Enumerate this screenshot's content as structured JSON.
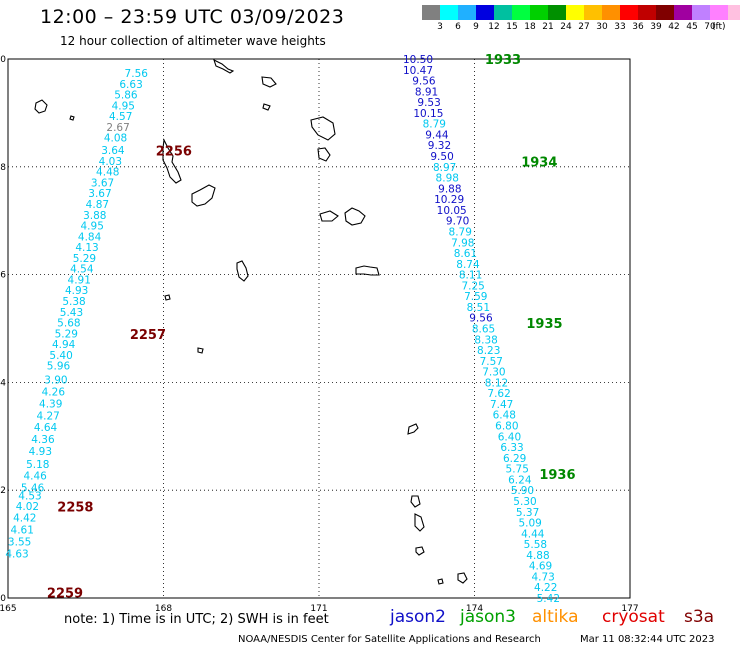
{
  "title": "12:00 – 23:59 UTC 03/09/2023",
  "subtitle": "12 hour collection of altimeter wave heights",
  "colors": {
    "light_blue": "#00c8f0",
    "navy": "#1010c8",
    "dark_red": "#7a0000",
    "green": "#008800",
    "coastline": "#000000"
  },
  "legend": {
    "swatches": [
      "#808080",
      "#00ffff",
      "#20b0ff",
      "#0000e0",
      "#00c0a0",
      "#00ff40",
      "#00d000",
      "#009000",
      "#ffff00",
      "#ffc000",
      "#ff9000",
      "#ff0000",
      "#c00000",
      "#800000",
      "#a000a0",
      "#c080ff",
      "#ff80ff",
      "#ffc0e0",
      "#000000"
    ],
    "labels": [
      "3",
      "6",
      "9",
      "12",
      "15",
      "18",
      "21",
      "24",
      "27",
      "30",
      "33",
      "36",
      "39",
      "42",
      "45",
      "70"
    ],
    "unit": "(ft)"
  },
  "axes": {
    "x_ticks": [
      "165",
      "168",
      "171",
      "174",
      "177"
    ],
    "y_ticks": [
      "0",
      "2",
      "4",
      "6",
      "8",
      "10"
    ]
  },
  "chart_data": {
    "type": "scatter",
    "x_range": [
      165,
      177
    ],
    "y_range": [
      0,
      10
    ],
    "grid": true,
    "units": "SWH in feet",
    "tracks": [
      {
        "color": "#00c8f0",
        "points": [
          {
            "lon": 167.7,
            "lat": 9.74,
            "v": "7.56"
          },
          {
            "lon": 167.6,
            "lat": 9.54,
            "v": "6.63"
          },
          {
            "lon": 167.5,
            "lat": 9.34,
            "v": "5.86"
          },
          {
            "lon": 167.45,
            "lat": 9.14,
            "v": "4.95"
          },
          {
            "lon": 167.4,
            "lat": 8.94,
            "v": "4.57"
          },
          {
            "lon": 167.35,
            "lat": 8.74,
            "v": "2.67",
            "color": "#808080"
          },
          {
            "lon": 167.3,
            "lat": 8.54,
            "v": "4.08"
          },
          {
            "lon": 167.25,
            "lat": 8.31,
            "v": "3.64"
          },
          {
            "lon": 167.2,
            "lat": 8.11,
            "v": "4.03"
          },
          {
            "lon": 167.15,
            "lat": 7.91,
            "v": "4.48"
          },
          {
            "lon": 167.05,
            "lat": 7.71,
            "v": "3.67"
          },
          {
            "lon": 167.0,
            "lat": 7.51,
            "v": "3.67"
          },
          {
            "lon": 166.95,
            "lat": 7.31,
            "v": "4.87"
          },
          {
            "lon": 166.9,
            "lat": 7.11,
            "v": "3.88"
          },
          {
            "lon": 166.85,
            "lat": 6.91,
            "v": "4.95"
          },
          {
            "lon": 166.8,
            "lat": 6.71,
            "v": "4.84"
          },
          {
            "lon": 166.75,
            "lat": 6.51,
            "v": "4.13"
          },
          {
            "lon": 166.7,
            "lat": 6.31,
            "v": "5.29"
          },
          {
            "lon": 166.65,
            "lat": 6.11,
            "v": "4.54"
          },
          {
            "lon": 166.6,
            "lat": 5.91,
            "v": "4.91"
          },
          {
            "lon": 166.55,
            "lat": 5.71,
            "v": "4.93"
          },
          {
            "lon": 166.5,
            "lat": 5.51,
            "v": "5.38"
          },
          {
            "lon": 166.45,
            "lat": 5.31,
            "v": "5.43"
          },
          {
            "lon": 166.4,
            "lat": 5.11,
            "v": "5.68"
          },
          {
            "lon": 166.35,
            "lat": 4.91,
            "v": "5.29"
          },
          {
            "lon": 166.3,
            "lat": 4.71,
            "v": "4.94"
          },
          {
            "lon": 166.25,
            "lat": 4.51,
            "v": "5.40"
          },
          {
            "lon": 166.2,
            "lat": 4.31,
            "v": "5.96"
          },
          {
            "lon": 166.15,
            "lat": 4.05,
            "v": "3.90"
          },
          {
            "lon": 166.1,
            "lat": 3.83,
            "v": "4.26"
          },
          {
            "lon": 166.05,
            "lat": 3.61,
            "v": "4.39"
          },
          {
            "lon": 166.0,
            "lat": 3.39,
            "v": "4.27"
          },
          {
            "lon": 165.95,
            "lat": 3.17,
            "v": "4.64"
          },
          {
            "lon": 165.9,
            "lat": 2.95,
            "v": "4.36"
          },
          {
            "lon": 165.85,
            "lat": 2.73,
            "v": "4.93"
          },
          {
            "lon": 165.8,
            "lat": 2.49,
            "v": "5.18"
          },
          {
            "lon": 165.75,
            "lat": 2.27,
            "v": "4.46"
          },
          {
            "lon": 165.7,
            "lat": 2.05,
            "v": "5.46"
          },
          {
            "lon": 165.65,
            "lat": 1.9,
            "v": "4.53"
          },
          {
            "lon": 165.6,
            "lat": 1.71,
            "v": "4.02"
          },
          {
            "lon": 165.55,
            "lat": 1.49,
            "v": "4.42"
          },
          {
            "lon": 165.5,
            "lat": 1.27,
            "v": "4.61"
          },
          {
            "lon": 165.45,
            "lat": 1.05,
            "v": "3.55"
          },
          {
            "lon": 165.4,
            "lat": 0.83,
            "v": "4.63"
          }
        ]
      },
      {
        "color": "#1010c8",
        "points": [
          {
            "lon": 173.2,
            "lat": 10.0,
            "v": "10.50"
          },
          {
            "lon": 173.2,
            "lat": 9.8,
            "v": "10.47"
          },
          {
            "lon": 173.25,
            "lat": 9.6,
            "v": "9.56"
          },
          {
            "lon": 173.3,
            "lat": 9.4,
            "v": "8.91"
          },
          {
            "lon": 173.35,
            "lat": 9.2,
            "v": "9.53"
          },
          {
            "lon": 173.4,
            "lat": 9.0,
            "v": "10.15"
          },
          {
            "lon": 173.45,
            "lat": 8.8,
            "v": "8.79",
            "color": "#00c8f0"
          },
          {
            "lon": 173.5,
            "lat": 8.6,
            "v": "9.44"
          },
          {
            "lon": 173.55,
            "lat": 8.4,
            "v": "9.32"
          },
          {
            "lon": 173.6,
            "lat": 8.2,
            "v": "9.50"
          },
          {
            "lon": 173.65,
            "lat": 8.0,
            "v": "8.97",
            "color": "#00c8f0"
          },
          {
            "lon": 173.7,
            "lat": 7.8,
            "v": "8.98",
            "color": "#00c8f0"
          },
          {
            "lon": 173.75,
            "lat": 7.6,
            "v": "9.88"
          },
          {
            "lon": 173.8,
            "lat": 7.4,
            "v": "10.29"
          },
          {
            "lon": 173.85,
            "lat": 7.2,
            "v": "10.05"
          },
          {
            "lon": 173.9,
            "lat": 7.0,
            "v": "9.70"
          },
          {
            "lon": 173.95,
            "lat": 6.8,
            "v": "8.79",
            "color": "#00c8f0"
          },
          {
            "lon": 174.0,
            "lat": 6.6,
            "v": "7.98",
            "color": "#00c8f0"
          },
          {
            "lon": 174.05,
            "lat": 6.4,
            "v": "8.61",
            "color": "#00c8f0"
          },
          {
            "lon": 174.1,
            "lat": 6.2,
            "v": "8.74",
            "color": "#00c8f0"
          },
          {
            "lon": 174.15,
            "lat": 6.0,
            "v": "8.11",
            "color": "#00c8f0"
          },
          {
            "lon": 174.2,
            "lat": 5.8,
            "v": "7.25",
            "color": "#00c8f0"
          },
          {
            "lon": 174.25,
            "lat": 5.6,
            "v": "7.59",
            "color": "#00c8f0"
          },
          {
            "lon": 174.3,
            "lat": 5.4,
            "v": "8.51",
            "color": "#00c8f0"
          },
          {
            "lon": 174.35,
            "lat": 5.2,
            "v": "9.56"
          },
          {
            "lon": 174.4,
            "lat": 5.0,
            "v": "8.65",
            "color": "#00c8f0"
          },
          {
            "lon": 174.45,
            "lat": 4.8,
            "v": "8.38",
            "color": "#00c8f0"
          },
          {
            "lon": 174.5,
            "lat": 4.6,
            "v": "8.23",
            "color": "#00c8f0"
          },
          {
            "lon": 174.55,
            "lat": 4.4,
            "v": "7.57",
            "color": "#00c8f0"
          },
          {
            "lon": 174.6,
            "lat": 4.2,
            "v": "7.30",
            "color": "#00c8f0"
          },
          {
            "lon": 174.65,
            "lat": 4.0,
            "v": "8.12",
            "color": "#00c8f0"
          },
          {
            "lon": 174.7,
            "lat": 3.8,
            "v": "7.62",
            "color": "#00c8f0"
          },
          {
            "lon": 174.75,
            "lat": 3.6,
            "v": "7.47",
            "color": "#00c8f0"
          },
          {
            "lon": 174.8,
            "lat": 3.4,
            "v": "6.48",
            "color": "#00c8f0"
          },
          {
            "lon": 174.85,
            "lat": 3.2,
            "v": "6.80",
            "color": "#00c8f0"
          },
          {
            "lon": 174.9,
            "lat": 3.0,
            "v": "6.40",
            "color": "#00c8f0"
          },
          {
            "lon": 174.95,
            "lat": 2.8,
            "v": "6.33",
            "color": "#00c8f0"
          },
          {
            "lon": 175.0,
            "lat": 2.6,
            "v": "6.29",
            "color": "#00c8f0"
          },
          {
            "lon": 175.05,
            "lat": 2.4,
            "v": "5.75",
            "color": "#00c8f0"
          },
          {
            "lon": 175.1,
            "lat": 2.2,
            "v": "6.24",
            "color": "#00c8f0"
          },
          {
            "lon": 175.15,
            "lat": 2.0,
            "v": "5.90",
            "color": "#00c8f0"
          },
          {
            "lon": 175.2,
            "lat": 1.8,
            "v": "5.30",
            "color": "#00c8f0"
          },
          {
            "lon": 175.25,
            "lat": 1.6,
            "v": "5.37",
            "color": "#00c8f0"
          },
          {
            "lon": 175.3,
            "lat": 1.4,
            "v": "5.09",
            "color": "#00c8f0"
          },
          {
            "lon": 175.35,
            "lat": 1.2,
            "v": "4.44",
            "color": "#00c8f0"
          },
          {
            "lon": 175.4,
            "lat": 1.0,
            "v": "5.58",
            "color": "#00c8f0"
          },
          {
            "lon": 175.45,
            "lat": 0.8,
            "v": "4.88",
            "color": "#00c8f0"
          },
          {
            "lon": 175.5,
            "lat": 0.6,
            "v": "4.69",
            "color": "#00c8f0"
          },
          {
            "lon": 175.55,
            "lat": 0.4,
            "v": "4.73",
            "color": "#00c8f0"
          },
          {
            "lon": 175.6,
            "lat": 0.2,
            "v": "4.22",
            "color": "#00c8f0"
          },
          {
            "lon": 175.65,
            "lat": 0.0,
            "v": "5.42",
            "color": "#00c8f0"
          }
        ]
      }
    ],
    "time_labels": [
      {
        "lon": 168.2,
        "lat": 8.3,
        "v": "2256",
        "color": "#7a0000"
      },
      {
        "lon": 167.7,
        "lat": 4.9,
        "v": "2257",
        "color": "#7a0000"
      },
      {
        "lon": 166.3,
        "lat": 1.7,
        "v": "2258",
        "color": "#7a0000"
      },
      {
        "lon": 166.1,
        "lat": 0.1,
        "v": "2259",
        "color": "#7a0000"
      },
      {
        "lon": 174.55,
        "lat": 10.0,
        "v": "1933",
        "color": "#008800"
      },
      {
        "lon": 175.25,
        "lat": 8.1,
        "v": "1934",
        "color": "#008800"
      },
      {
        "lon": 175.35,
        "lat": 5.1,
        "v": "1935",
        "color": "#008800"
      },
      {
        "lon": 175.6,
        "lat": 2.3,
        "v": "1936",
        "color": "#008800"
      }
    ]
  },
  "note": "note: 1) Time is in UTC; 2) SWH is in feet",
  "satellites": [
    {
      "name": "jason2",
      "color": "#1010c8"
    },
    {
      "name": "jason3",
      "color": "#00a000"
    },
    {
      "name": "altika",
      "color": "#ff9000"
    },
    {
      "name": "cryosat",
      "color": "#e00000"
    },
    {
      "name": "s3a",
      "color": "#800000"
    }
  ],
  "credit": "NOAA/NESDIS Center for Satellite Applications and Research",
  "timestamp": "Mar 11 08:32:44 UTC 2023"
}
